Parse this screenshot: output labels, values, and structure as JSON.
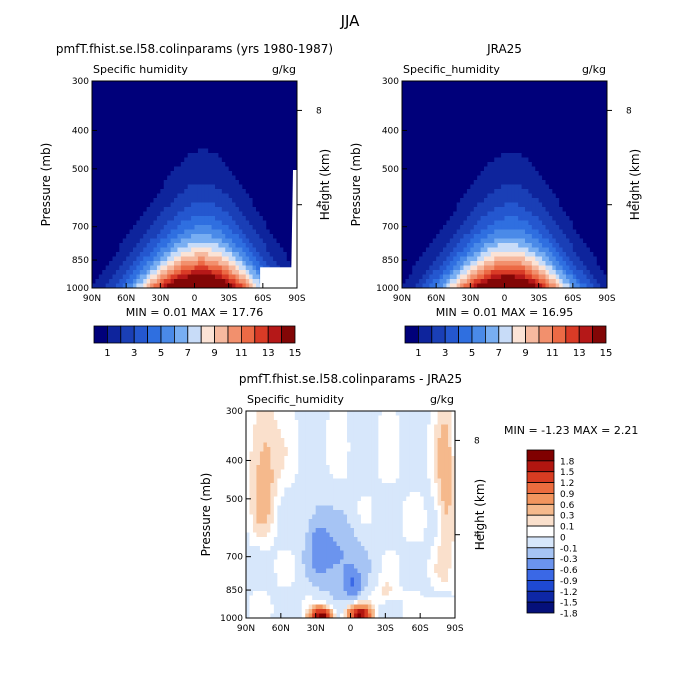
{
  "chart_data": {
    "title": "JJA",
    "colors": {
      "fullfield": [
        "#00007a",
        "#0e249c",
        "#1a3fb6",
        "#2457cf",
        "#2f6fe0",
        "#4a8ae8",
        "#78aef2",
        "#c8dcf8",
        "#fbe3d6",
        "#f6b99f",
        "#f2906d",
        "#ec6a45",
        "#d93b26",
        "#b51818",
        "#820606"
      ],
      "difference": [
        "#05107a",
        "#0e27a6",
        "#1e49d2",
        "#3a68e6",
        "#6b94ee",
        "#a6c4f4",
        "#d7e7fb",
        "#ffffff",
        "#fae0cc",
        "#f5b98c",
        "#f2955e",
        "#ec6c3e",
        "#d83c22",
        "#b21610",
        "#800000"
      ]
    },
    "panels": [
      {
        "id": "model",
        "type": "filled-contour",
        "title": "pmfT.fhist.se.l58.colinparams (yrs 1980-1987)",
        "subtitle_left": "Specific humidity",
        "subtitle_right": "g/kg",
        "ylabel": "Pressure (mb)",
        "ylabel_right": "Height (km)",
        "x_ticks": [
          "90N",
          "60N",
          "30N",
          "0",
          "30S",
          "60S",
          "90S"
        ],
        "y_ticks": [
          "300",
          "400",
          "500",
          "700",
          "850",
          "1000"
        ],
        "right_ticks": [
          "8",
          "4"
        ],
        "minmax_text": "MIN =    0.01   MAX =   17.76",
        "colorbar_labels": [
          "1",
          "3",
          "5",
          "7",
          "9",
          "11",
          "13",
          "15"
        ],
        "peak_lat": -8,
        "max": 17.76
      },
      {
        "id": "obs",
        "type": "filled-contour",
        "title": "JRA25",
        "subtitle_left": "Specific_humidity",
        "subtitle_right": "g/kg",
        "ylabel": "Pressure (mb)",
        "ylabel_right": "Height (km)",
        "x_ticks": [
          "90N",
          "60N",
          "30N",
          "0",
          "30S",
          "60S",
          "90S"
        ],
        "y_ticks": [
          "300",
          "400",
          "500",
          "700",
          "850",
          "1000"
        ],
        "right_ticks": [
          "8",
          "4"
        ],
        "minmax_text": "MIN =    0.01   MAX =   16.95",
        "colorbar_labels": [
          "1",
          "3",
          "5",
          "7",
          "9",
          "11",
          "13",
          "15"
        ],
        "peak_lat": -6,
        "max": 16.95
      },
      {
        "id": "diff",
        "type": "filled-contour",
        "title": "pmfT.fhist.se.l58.colinparams - JRA25",
        "subtitle_left": "Specific_humidity",
        "subtitle_right": "g/kg",
        "ylabel": "Pressure (mb)",
        "ylabel_right": "Height (km)",
        "x_ticks": [
          "90N",
          "60N",
          "30N",
          "0",
          "30S",
          "60S",
          "90S"
        ],
        "y_ticks": [
          "300",
          "400",
          "500",
          "700",
          "850",
          "1000"
        ],
        "right_ticks": [
          "8",
          "4"
        ],
        "minmax_text": "MIN =   -1.23   MAX =    2.21",
        "colorbar_labels": [
          "1.8",
          "1.5",
          "1.2",
          "0.9",
          "0.6",
          "0.3",
          "0.1",
          "0",
          "-0.1",
          "-0.3",
          "-0.6",
          "-0.9",
          "-1.2",
          "-1.5",
          "-1.8"
        ],
        "min": -1.23,
        "max": 2.21
      }
    ]
  }
}
